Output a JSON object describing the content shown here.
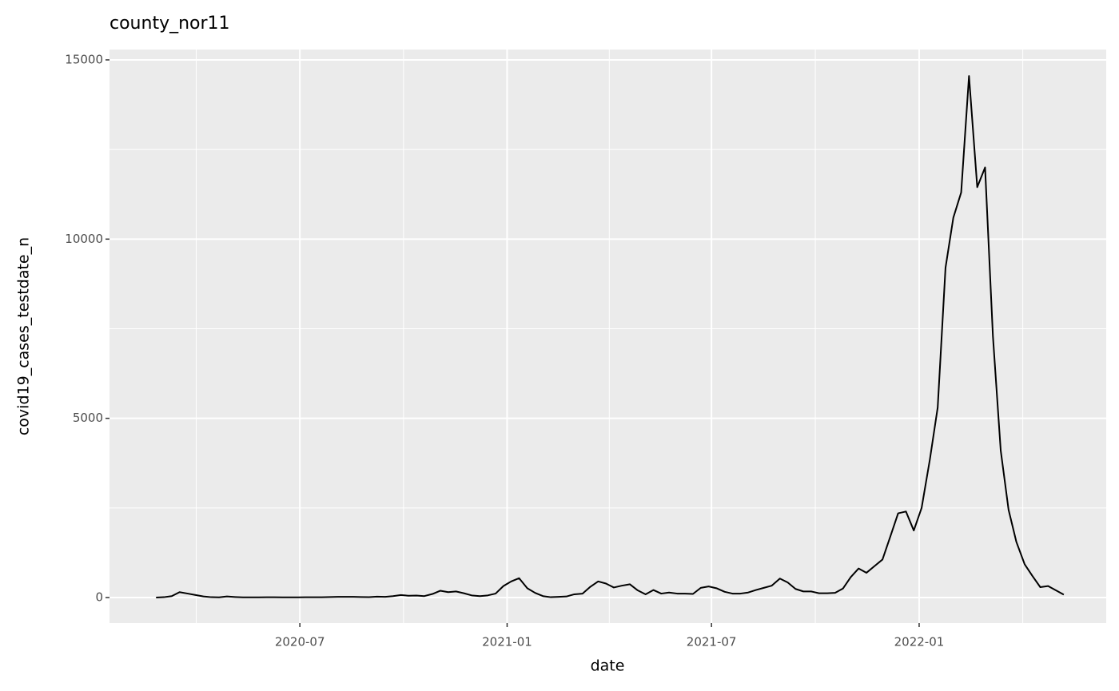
{
  "chart_data": {
    "type": "line",
    "title": "county_nor11",
    "x_label": "date",
    "y_label": "covid19_cases_testdate_n",
    "x": [
      2020.148,
      2020.167,
      2020.186,
      2020.205,
      2020.225,
      2020.244,
      2020.263,
      2020.282,
      2020.301,
      2020.32,
      2020.34,
      2020.359,
      2020.378,
      2020.397,
      2020.416,
      2020.435,
      2020.455,
      2020.474,
      2020.493,
      2020.512,
      2020.531,
      2020.55,
      2020.57,
      2020.589,
      2020.608,
      2020.627,
      2020.646,
      2020.665,
      2020.684,
      2020.704,
      2020.723,
      2020.742,
      2020.761,
      2020.78,
      2020.799,
      2020.819,
      2020.838,
      2020.857,
      2020.876,
      2020.895,
      2020.914,
      2020.934,
      2020.953,
      2020.972,
      2020.991,
      2021.01,
      2021.029,
      2021.049,
      2021.068,
      2021.087,
      2021.106,
      2021.125,
      2021.144,
      2021.163,
      2021.183,
      2021.202,
      2021.221,
      2021.24,
      2021.259,
      2021.278,
      2021.298,
      2021.317,
      2021.336,
      2021.355,
      2021.374,
      2021.393,
      2021.413,
      2021.432,
      2021.451,
      2021.47,
      2021.489,
      2021.508,
      2021.528,
      2021.547,
      2021.566,
      2021.585,
      2021.604,
      2021.623,
      2021.642,
      2021.662,
      2021.681,
      2021.7,
      2021.719,
      2021.738,
      2021.757,
      2021.777,
      2021.796,
      2021.815,
      2021.834,
      2021.853,
      2021.872,
      2021.892,
      2021.911,
      2021.93,
      2021.949,
      2021.968,
      2021.987,
      2022.006,
      2022.026,
      2022.045,
      2022.064,
      2022.083,
      2022.102,
      2022.121,
      2022.141,
      2022.16,
      2022.179,
      2022.198,
      2022.217,
      2022.236,
      2022.256,
      2022.275,
      2022.294,
      2022.313,
      2022.332,
      2022.351
    ],
    "series": [
      {
        "name": "covid19_cases_testdate_n",
        "color": "#000000",
        "values": [
          0,
          10,
          40,
          150,
          110,
          70,
          30,
          10,
          5,
          30,
          15,
          5,
          5,
          5,
          8,
          8,
          5,
          5,
          5,
          8,
          8,
          8,
          15,
          20,
          20,
          20,
          15,
          10,
          25,
          20,
          40,
          70,
          50,
          55,
          40,
          100,
          190,
          150,
          170,
          120,
          60,
          40,
          60,
          110,
          320,
          450,
          540,
          260,
          130,
          40,
          10,
          20,
          30,
          90,
          110,
          300,
          450,
          390,
          280,
          330,
          370,
          200,
          90,
          210,
          110,
          140,
          110,
          110,
          100,
          270,
          310,
          260,
          160,
          110,
          110,
          140,
          210,
          270,
          330,
          530,
          420,
          240,
          170,
          170,
          120,
          120,
          130,
          250,
          570,
          810,
          690,
          880,
          1060,
          1700,
          2350,
          2400,
          1870,
          2500,
          3850,
          5300,
          9200,
          10600,
          11300,
          14550,
          11450,
          12000,
          7300,
          4100,
          2450,
          1550,
          930,
          600,
          290,
          320,
          200,
          80
        ]
      }
    ],
    "xlim": [
      2020.035,
      2022.454
    ],
    "xticks": [
      {
        "value": 2020.497,
        "label": "2020-07"
      },
      {
        "value": 2021.0,
        "label": "2021-01"
      },
      {
        "value": 2021.496,
        "label": "2021-07"
      },
      {
        "value": 2022.0,
        "label": "2022-01"
      }
    ],
    "ylim": [
      -713,
      15289
    ],
    "yticks": [
      0,
      5000,
      10000,
      15000
    ],
    "grid": true
  }
}
